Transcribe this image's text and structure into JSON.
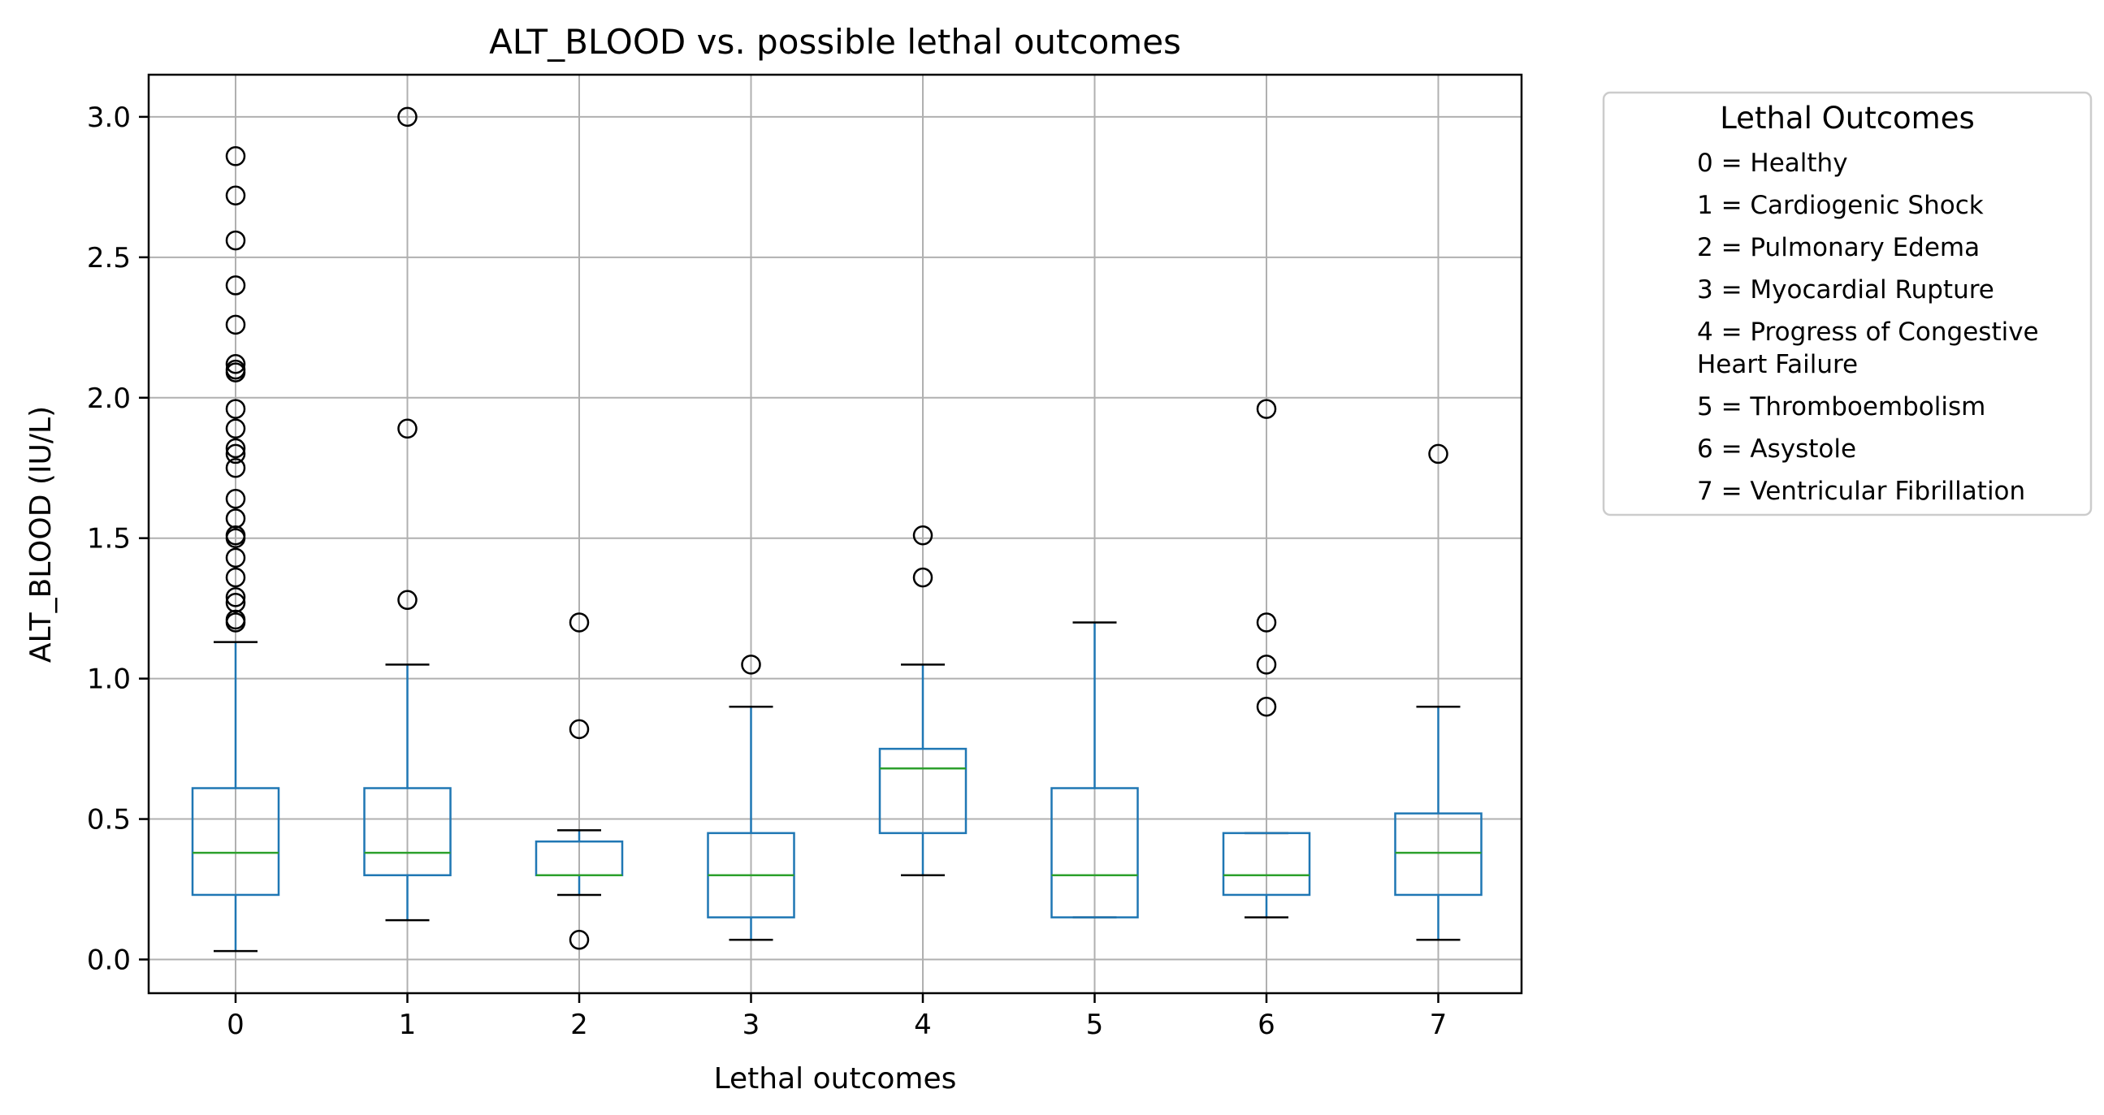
{
  "chart_data": {
    "type": "box",
    "title": "ALT_BLOOD vs. possible lethal outcomes",
    "xlabel": "Lethal outcomes",
    "ylabel": "ALT_BLOOD (IU/L)",
    "categories": [
      "0",
      "1",
      "2",
      "3",
      "4",
      "5",
      "6",
      "7"
    ],
    "ylim": [
      -0.12,
      3.15
    ],
    "yticks": [
      0.0,
      0.5,
      1.0,
      1.5,
      2.0,
      2.5,
      3.0
    ],
    "ytick_labels": [
      "0.0",
      "0.5",
      "1.0",
      "1.5",
      "2.0",
      "2.5",
      "3.0"
    ],
    "grid": true,
    "colors": {
      "box": "#1f77b4",
      "median": "#2ca02c",
      "cap": "#000000",
      "grid": "#b0b0b0"
    },
    "boxes": [
      {
        "category": "0",
        "whisker_low": 0.03,
        "q1": 0.23,
        "median": 0.38,
        "q3": 0.61,
        "whisker_high": 1.13,
        "outliers": [
          2.86,
          2.72,
          2.56,
          2.4,
          2.26,
          2.12,
          2.1,
          2.09,
          1.96,
          1.89,
          1.82,
          1.8,
          1.75,
          1.64,
          1.57,
          1.51,
          1.5,
          1.43,
          1.36,
          1.29,
          1.27,
          1.21,
          1.2
        ]
      },
      {
        "category": "1",
        "whisker_low": 0.14,
        "q1": 0.3,
        "median": 0.38,
        "q3": 0.61,
        "whisker_high": 1.05,
        "outliers": [
          3.0,
          1.89,
          1.28
        ]
      },
      {
        "category": "2",
        "whisker_low": 0.23,
        "q1": 0.3,
        "median": 0.3,
        "q3": 0.42,
        "whisker_high": 0.46,
        "outliers": [
          1.2,
          0.82,
          0.07
        ]
      },
      {
        "category": "3",
        "whisker_low": 0.07,
        "q1": 0.15,
        "median": 0.3,
        "q3": 0.45,
        "whisker_high": 0.9,
        "outliers": [
          1.05
        ]
      },
      {
        "category": "4",
        "whisker_low": 0.3,
        "q1": 0.45,
        "median": 0.68,
        "q3": 0.75,
        "whisker_high": 1.05,
        "outliers": [
          1.51,
          1.36
        ]
      },
      {
        "category": "5",
        "whisker_low": 0.15,
        "q1": 0.15,
        "median": 0.3,
        "q3": 0.61,
        "whisker_high": 1.2,
        "outliers": []
      },
      {
        "category": "6",
        "whisker_low": 0.15,
        "q1": 0.23,
        "median": 0.3,
        "q3": 0.45,
        "whisker_high": 0.45,
        "outliers": [
          1.96,
          1.2,
          1.05,
          0.9
        ]
      },
      {
        "category": "7",
        "whisker_low": 0.07,
        "q1": 0.23,
        "median": 0.38,
        "q3": 0.52,
        "whisker_high": 0.9,
        "outliers": [
          1.8
        ]
      }
    ],
    "legend": {
      "title": "Lethal Outcomes",
      "placement": "outside-right",
      "entries": [
        [
          "0 = Healthy"
        ],
        [
          "1 = Cardiogenic Shock"
        ],
        [
          "2 = Pulmonary Edema"
        ],
        [
          "3 = Myocardial Rupture"
        ],
        [
          "4 = Progress of Congestive",
          "Heart Failure"
        ],
        [
          "5 = Thromboembolism"
        ],
        [
          "6 = Asystole"
        ],
        [
          "7 = Ventricular Fibrillation"
        ]
      ]
    }
  }
}
